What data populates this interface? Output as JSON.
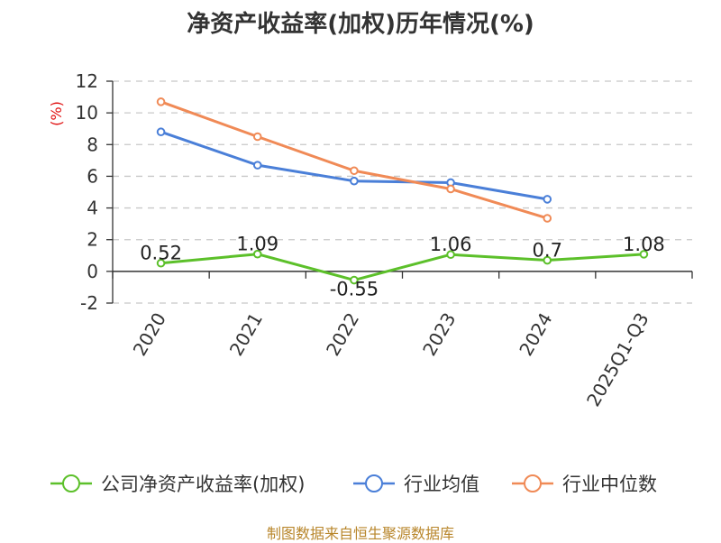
{
  "chart_data": {
    "type": "line",
    "title": "净资产收益率(加权)历年情况(%)",
    "ylabel": "(%)",
    "xlabel": "",
    "categories": [
      "2020",
      "2021",
      "2022",
      "2023",
      "2024",
      "2025Q1-Q3"
    ],
    "ylim": [
      -2,
      12
    ],
    "yticks": [
      -2,
      0,
      2,
      4,
      6,
      8,
      10,
      12
    ],
    "grid": true,
    "legend_position": "bottom",
    "series": [
      {
        "name": "公司净资产收益率(加权)",
        "color": "#5cc02a",
        "values": [
          0.52,
          1.09,
          -0.55,
          1.06,
          0.7,
          1.08
        ],
        "data_labels": [
          "0.52",
          "1.09",
          "-0.55",
          "1.06",
          "0.7",
          "1.08"
        ]
      },
      {
        "name": "行业均值",
        "color": "#4a7fd8",
        "values": [
          8.8,
          6.7,
          5.7,
          5.6,
          4.55,
          null
        ]
      },
      {
        "name": "行业中位数",
        "color": "#f08a56",
        "values": [
          10.7,
          8.5,
          6.35,
          5.2,
          3.35,
          null
        ]
      }
    ]
  },
  "footer": {
    "source": "制图数据来自恒生聚源数据库"
  }
}
